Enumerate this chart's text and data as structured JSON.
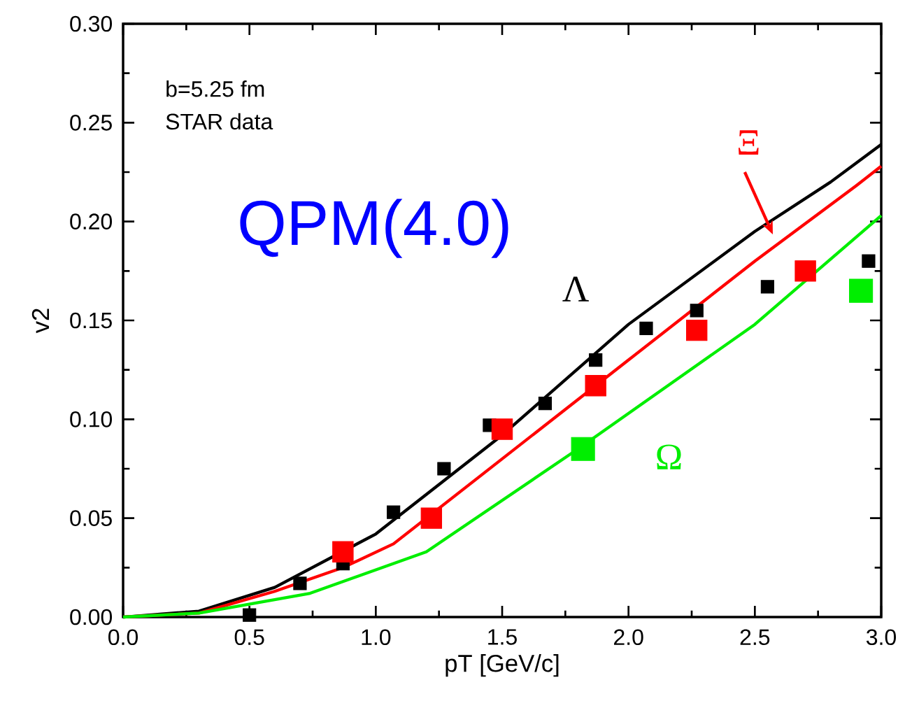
{
  "chart_data": {
    "type": "line",
    "xlabel": "pT [GeV/c]",
    "ylabel": "v2",
    "xlim": [
      0,
      3.0
    ],
    "ylim": [
      0,
      0.3
    ],
    "xticks": [
      {
        "value": 0,
        "label": "0.0"
      },
      {
        "value": 0.5,
        "label": "0.5"
      },
      {
        "value": 1.0,
        "label": "1.0"
      },
      {
        "value": 1.5,
        "label": "1.5"
      },
      {
        "value": 2.0,
        "label": "2.0"
      },
      {
        "value": 2.5,
        "label": "2.5"
      },
      {
        "value": 3.0,
        "label": "3.0"
      }
    ],
    "yticks": [
      {
        "value": 0,
        "label": "0.00"
      },
      {
        "value": 0.05,
        "label": "0.05"
      },
      {
        "value": 0.1,
        "label": "0.10"
      },
      {
        "value": 0.15,
        "label": "0.15"
      },
      {
        "value": 0.2,
        "label": "0.20"
      },
      {
        "value": 0.25,
        "label": "0.25"
      },
      {
        "value": 0.3,
        "label": "0.30"
      }
    ],
    "grid": false,
    "series": [
      {
        "color": "#000000",
        "x": [
          0,
          0.3,
          0.6,
          1.0,
          1.5,
          2.0,
          2.5,
          2.8,
          3.0
        ],
        "values": [
          0,
          0.003,
          0.015,
          0.042,
          0.092,
          0.148,
          0.195,
          0.22,
          0.239
        ]
      },
      {
        "color": "#ff0000",
        "x": [
          0,
          0.3,
          0.6,
          0.87,
          1.07,
          1.5,
          2.0,
          2.5,
          2.9,
          3.0
        ],
        "values": [
          0,
          0.002,
          0.013,
          0.025,
          0.037,
          0.08,
          0.13,
          0.18,
          0.218,
          0.228
        ]
      },
      {
        "color": "#00ee00",
        "x": [
          0,
          0.3,
          0.74,
          1.2,
          1.8,
          2.5,
          3.0
        ],
        "values": [
          0,
          0.002,
          0.012,
          0.033,
          0.085,
          0.148,
          0.203
        ]
      },
      {
        "type": "scatter",
        "marker": "square",
        "color": "#000000",
        "x": [
          0.5,
          0.7,
          0.87,
          1.07,
          1.27,
          1.45,
          1.67,
          1.87,
          2.07,
          2.27,
          2.55,
          2.95
        ],
        "values": [
          0.001,
          0.017,
          0.027,
          0.053,
          0.075,
          0.097,
          0.108,
          0.13,
          0.146,
          0.155,
          0.167,
          0.18
        ]
      },
      {
        "type": "scatter",
        "marker": "square",
        "color": "#ff0000",
        "x": [
          0.87,
          1.22,
          1.5,
          1.87,
          2.27,
          2.7
        ],
        "values": [
          0.033,
          0.05,
          0.095,
          0.117,
          0.145,
          0.175
        ]
      },
      {
        "type": "scatter",
        "marker": "square",
        "color": "#00ee00",
        "x": [
          1.82,
          2.92
        ],
        "values": [
          0.085,
          0.165
        ]
      }
    ],
    "annotations": [
      "b=5.25 fm",
      "STAR data",
      "QPM(4.0)",
      "Λ",
      "Ξ",
      "Ω"
    ]
  }
}
